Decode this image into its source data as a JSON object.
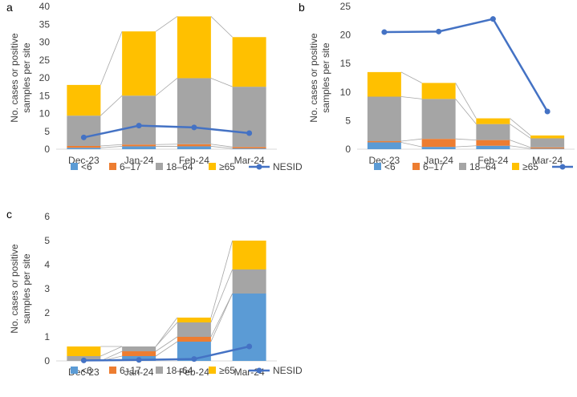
{
  "colors": {
    "lt6": "#5B9BD5",
    "age6to17": "#ED7D31",
    "age18to64": "#A5A5A5",
    "ge65": "#FFC000",
    "nesid": "#4472C4",
    "axis": "#D9D9D9",
    "connector": "#A6A6A6"
  },
  "legend": {
    "lt6": "<6",
    "age6to17": "6–17",
    "age18to64": "18–64",
    "ge65": "≥65",
    "nesid": "NESID"
  },
  "chart_data": [
    {
      "panel": "a",
      "type": "bar",
      "stacked": true,
      "ylabel": [
        "No. cases or positive",
        "samples per site"
      ],
      "ylim": [
        0,
        40
      ],
      "yticks": [
        0,
        5,
        10,
        15,
        20,
        25,
        30,
        35,
        40
      ],
      "categories": [
        "Dec-23",
        "Jan-24",
        "Feb-24",
        "Mar-24"
      ],
      "series": [
        {
          "key": "lt6",
          "name": "<6",
          "values": [
            0.4,
            0.8,
            0.8,
            0.2
          ]
        },
        {
          "key": "age6to17",
          "name": "6–17",
          "values": [
            0.5,
            0.5,
            0.6,
            0.4
          ]
        },
        {
          "key": "age18to64",
          "name": "18–64",
          "values": [
            8.5,
            13.7,
            18.5,
            16.9
          ]
        },
        {
          "key": "ge65",
          "name": "≥65",
          "values": [
            8.6,
            18.0,
            17.3,
            13.9
          ]
        }
      ],
      "line": {
        "key": "nesid",
        "name": "NESID",
        "values": [
          3.3,
          6.6,
          6.1,
          4.5
        ]
      }
    },
    {
      "panel": "b",
      "type": "bar",
      "stacked": true,
      "ylabel": [
        "No. cases or positive",
        "samples per site"
      ],
      "ylim": [
        0,
        25
      ],
      "yticks": [
        0,
        5,
        10,
        15,
        20,
        25
      ],
      "categories": [
        "Dec-23",
        "Jan-24",
        "Feb-24",
        "Mar-24"
      ],
      "series": [
        {
          "key": "lt6",
          "name": "<6",
          "values": [
            1.2,
            0.4,
            0.6,
            0.1
          ]
        },
        {
          "key": "age6to17",
          "name": "6–17",
          "values": [
            0.2,
            1.4,
            1.0,
            0.2
          ]
        },
        {
          "key": "age18to64",
          "name": "18–64",
          "values": [
            7.8,
            7.0,
            2.8,
            1.6
          ]
        },
        {
          "key": "ge65",
          "name": "≥65",
          "values": [
            4.3,
            2.8,
            1.0,
            0.5
          ]
        }
      ],
      "line": {
        "key": "nesid",
        "name": "NESID",
        "values": [
          20.5,
          20.6,
          22.8,
          6.6
        ]
      }
    },
    {
      "panel": "c",
      "type": "bar",
      "stacked": true,
      "ylabel": [
        "No. cases or positive",
        "samples per site"
      ],
      "ylim": [
        0,
        6
      ],
      "yticks": [
        0,
        1,
        2,
        3,
        4,
        5,
        6
      ],
      "categories": [
        "Dec-23",
        "Jan-24",
        "Feb-24",
        "Mar-24"
      ],
      "series": [
        {
          "key": "lt6",
          "name": "<6",
          "values": [
            0.0,
            0.2,
            0.8,
            2.8
          ]
        },
        {
          "key": "age6to17",
          "name": "6–17",
          "values": [
            0.0,
            0.2,
            0.2,
            0.0
          ]
        },
        {
          "key": "age18to64",
          "name": "18–64",
          "values": [
            0.2,
            0.2,
            0.6,
            1.0
          ]
        },
        {
          "key": "ge65",
          "name": "≥65",
          "values": [
            0.4,
            0.0,
            0.2,
            1.2
          ]
        }
      ],
      "line": {
        "key": "nesid",
        "name": "NESID",
        "values": [
          0.02,
          0.04,
          0.08,
          0.6
        ]
      }
    }
  ]
}
